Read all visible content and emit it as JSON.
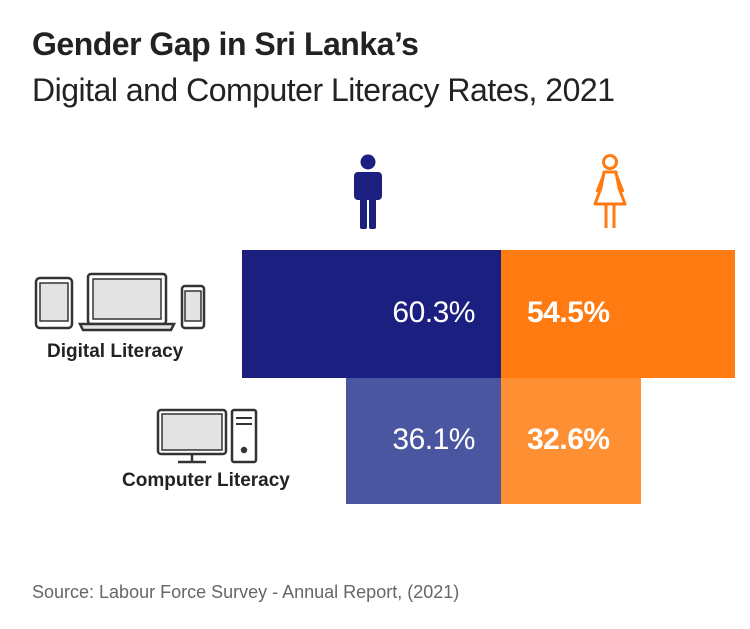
{
  "title": "Gender Gap in Sri Lanka’s",
  "subtitle": "Digital and Computer Literacy Rates, 2021",
  "source": "Source: Labour Force Survey - Annual Report, (2021)",
  "colors": {
    "male_digital": "#1b1f80",
    "female_digital": "#ff7a10",
    "male_computer": "#4a56a0",
    "female_computer": "#ff8f33",
    "male_icon": "#1b1f80",
    "female_icon": "#ff7a10"
  },
  "chart_data": {
    "type": "bar",
    "title": "Gender Gap in Sri Lanka’s",
    "subtitle": "Digital and Computer Literacy Rates, 2021",
    "categories": [
      "Digital Literacy",
      "Computer Literacy"
    ],
    "series": [
      {
        "name": "Male",
        "icon": "male-icon",
        "values": [
          60.3,
          36.1
        ],
        "labels": [
          "60.3%",
          "36.1%"
        ]
      },
      {
        "name": "Female",
        "icon": "female-icon",
        "values": [
          54.5,
          32.6
        ],
        "labels": [
          "54.5%",
          "32.6%"
        ]
      }
    ],
    "unit": "%"
  }
}
